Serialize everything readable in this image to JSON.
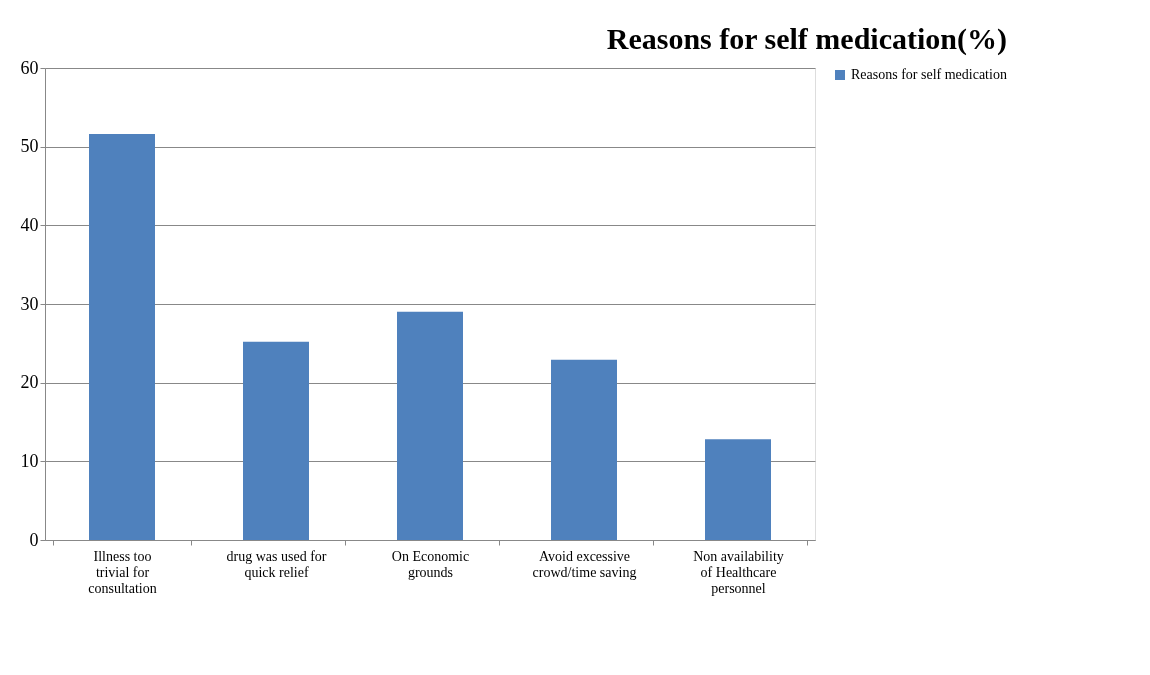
{
  "chart_data": {
    "type": "bar",
    "title": "Reasons for self medication(%)",
    "categories": [
      "Illness too trivial for consultation",
      "drug was used for quick relief",
      "On Economic grounds",
      "Avoid excessive crowd/time saving",
      "Non availability of Healthcare personnel"
    ],
    "series": [
      {
        "name": "Reasons for self medication",
        "color": "#4f81bd",
        "values": [
          51.6,
          25.2,
          29.0,
          22.9,
          12.8
        ]
      }
    ],
    "ylim": [
      0,
      60
    ],
    "yticks": [
      0,
      10,
      20,
      30,
      40,
      50,
      60
    ],
    "grid": "y",
    "legend": "right"
  }
}
